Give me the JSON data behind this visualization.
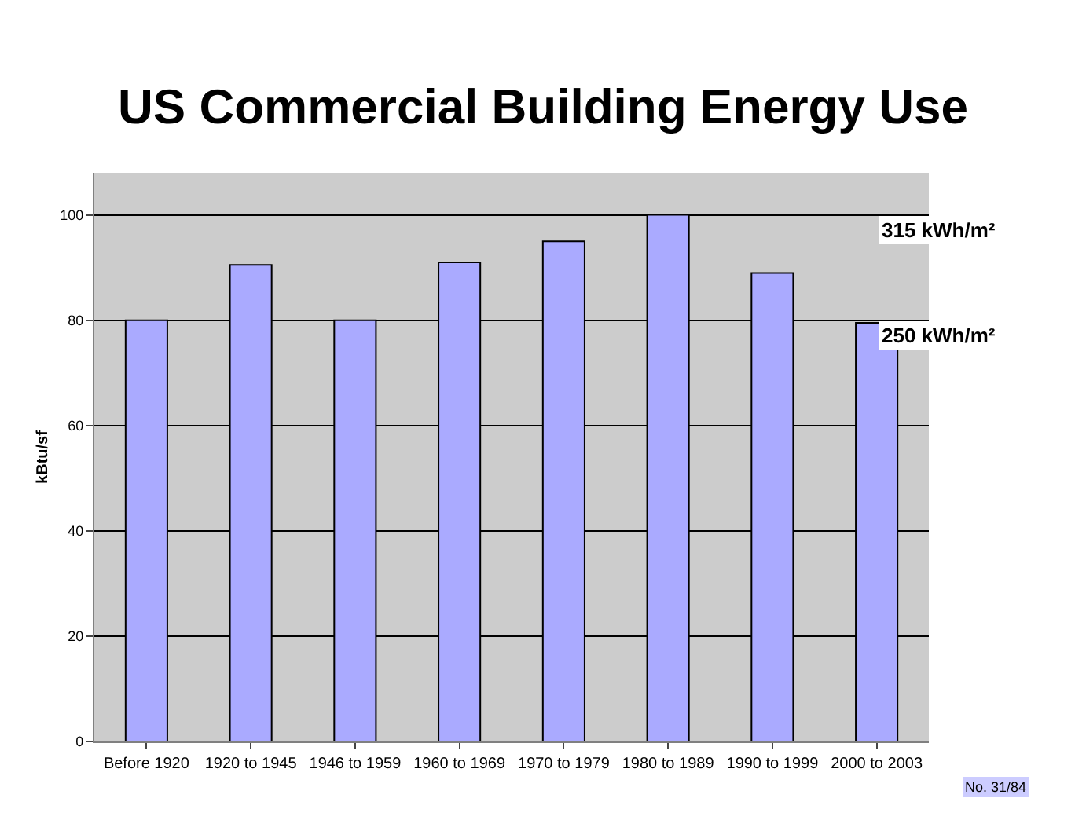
{
  "chart_data": {
    "type": "bar",
    "title": "US Commercial Building Energy Use",
    "ylabel": "kBtu/sf",
    "categories": [
      "Before 1920",
      "1920 to 1945",
      "1946 to 1959",
      "1960 to 1969",
      "1970 to 1979",
      "1980 to 1989",
      "1990 to 1999",
      "2000 to 2003"
    ],
    "values": [
      80,
      90.5,
      80,
      91,
      95,
      100,
      89,
      79.5
    ],
    "color": "#aaaaff",
    "ylim": [
      0,
      108
    ],
    "yticks": [
      0,
      20,
      40,
      60,
      80,
      100
    ],
    "grid": "y",
    "annotations": [
      "315 kWh/m²",
      "250 kWh/m²",
      "No. 31/84"
    ]
  }
}
